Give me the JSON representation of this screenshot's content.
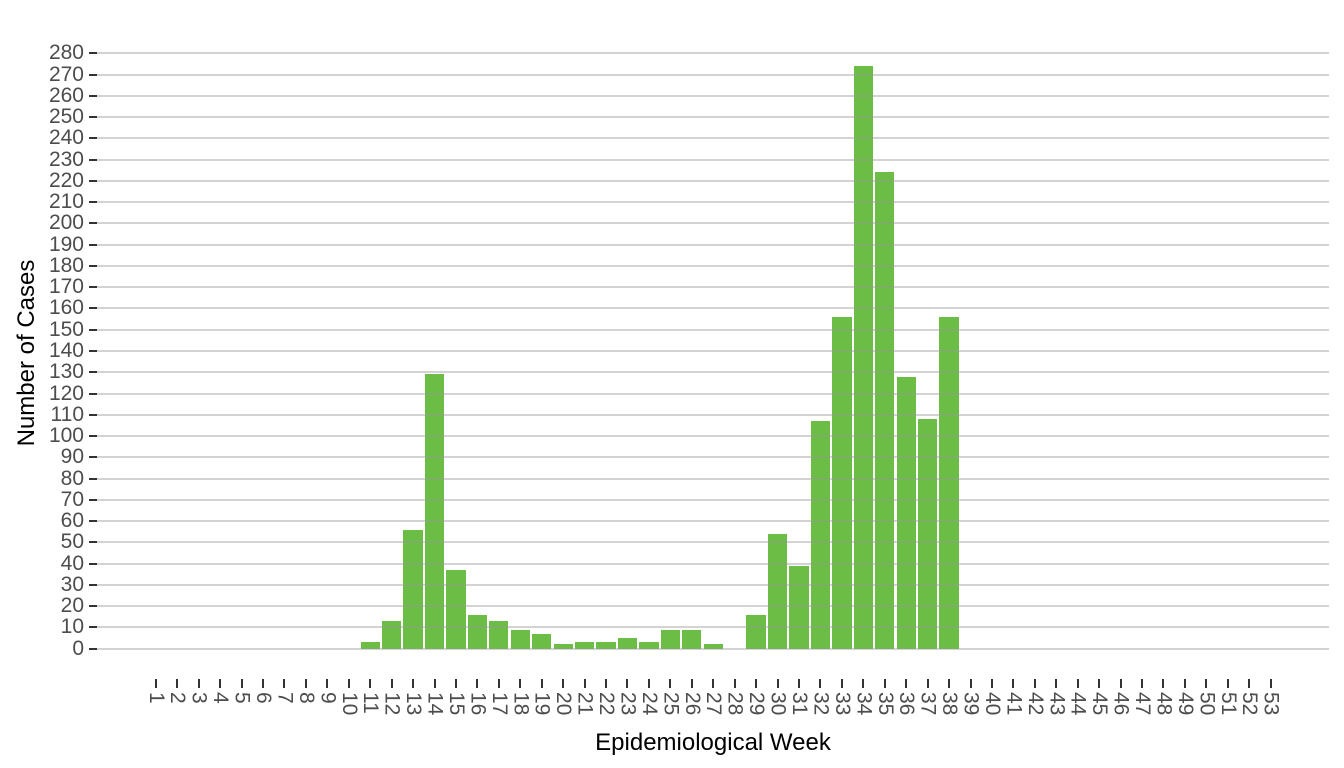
{
  "chart_data": {
    "type": "bar",
    "title": "",
    "xlabel": "Epidemiological Week",
    "ylabel": "Number of Cases",
    "x_categories": [
      1,
      2,
      3,
      4,
      5,
      6,
      7,
      8,
      9,
      10,
      11,
      12,
      13,
      14,
      15,
      16,
      17,
      18,
      19,
      20,
      21,
      22,
      23,
      24,
      25,
      26,
      27,
      28,
      29,
      30,
      31,
      32,
      33,
      34,
      35,
      36,
      37,
      38,
      39,
      40,
      41,
      42,
      43,
      44,
      45,
      46,
      47,
      48,
      49,
      50,
      51,
      52,
      53
    ],
    "values": [
      0,
      0,
      0,
      0,
      0,
      0,
      0,
      0,
      0,
      0,
      3,
      13,
      56,
      129,
      37,
      16,
      13,
      9,
      7,
      2,
      3,
      3,
      5,
      3,
      9,
      9,
      2,
      0,
      16,
      54,
      39,
      107,
      156,
      274,
      224,
      128,
      108,
      156,
      0,
      0,
      0,
      0,
      0,
      0,
      0,
      0,
      0,
      0,
      0,
      0,
      0,
      0,
      0
    ],
    "y_ticks": [
      0,
      10,
      20,
      30,
      40,
      50,
      60,
      70,
      80,
      90,
      100,
      110,
      120,
      130,
      140,
      150,
      160,
      170,
      180,
      190,
      200,
      210,
      220,
      230,
      240,
      250,
      260,
      270,
      280
    ],
    "ylim": [
      0,
      280
    ],
    "grid": "horizontal-major-only",
    "legend": "none",
    "x_tick_label_rotation_deg": 90,
    "colors": {
      "bar": "#6CBD45",
      "gridline_rgba": "150,150,150,0.42",
      "tick": "#333333",
      "tick_label": "#4d4d4d",
      "axis_title": "#000000",
      "background": "#ffffff"
    }
  }
}
